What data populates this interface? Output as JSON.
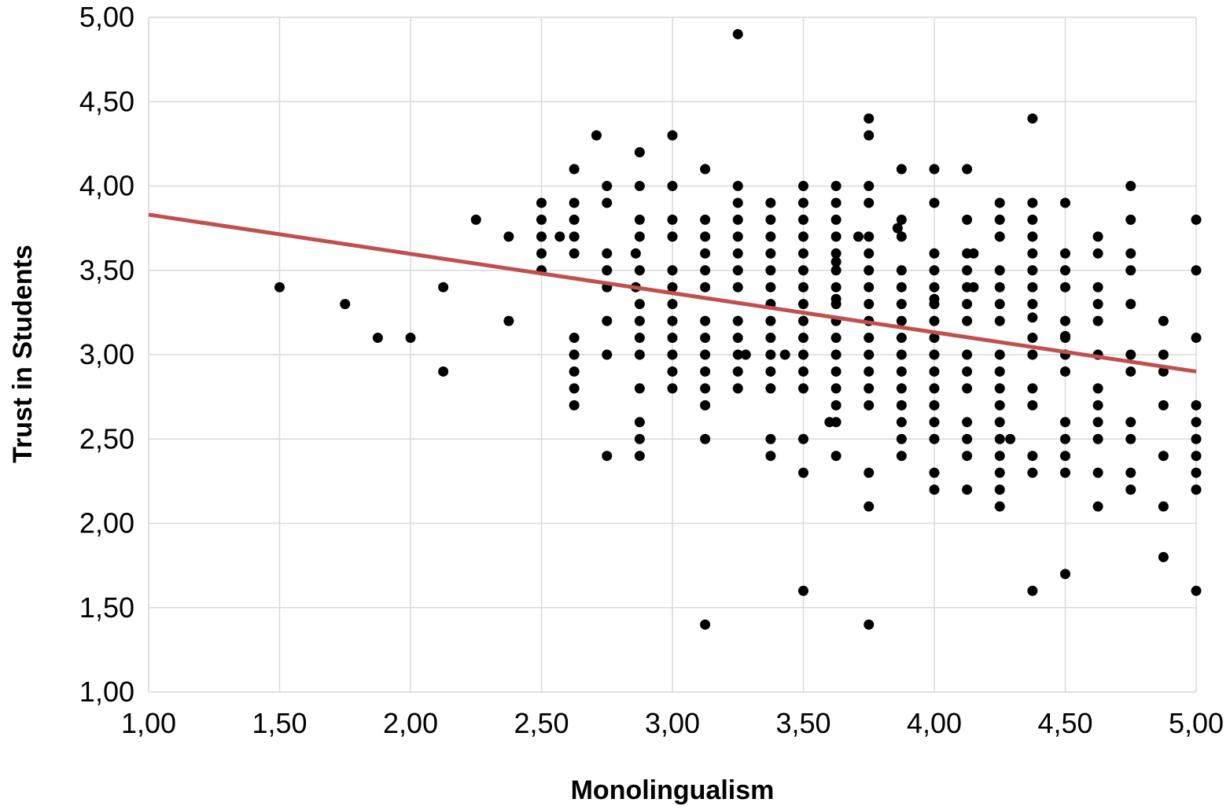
{
  "chart_data": {
    "type": "scatter",
    "title": "",
    "xlabel": "Monolingualism",
    "ylabel": "Trust in Students",
    "xlim": [
      1.0,
      5.0
    ],
    "ylim": [
      1.0,
      5.0
    ],
    "x_ticks": [
      1.0,
      1.5,
      2.0,
      2.5,
      3.0,
      3.5,
      4.0,
      4.5,
      5.0
    ],
    "x_tick_labels": [
      "1,00",
      "1,50",
      "2,00",
      "2,50",
      "3,00",
      "3,50",
      "4,00",
      "4,50",
      "5,00"
    ],
    "y_ticks": [
      1.0,
      1.5,
      2.0,
      2.5,
      3.0,
      3.5,
      4.0,
      4.5,
      5.0
    ],
    "y_tick_labels": [
      "1,00",
      "1,50",
      "2,00",
      "2,50",
      "3,00",
      "3,50",
      "4,00",
      "4,50",
      "5,00"
    ],
    "grid": true,
    "legend": "none",
    "point_color": "#000000",
    "trendline": {
      "x": [
        1.0,
        5.0
      ],
      "y": [
        3.83,
        2.9
      ],
      "color": "#c0504d"
    },
    "points": [
      [
        1.5,
        3.4
      ],
      [
        1.75,
        3.3
      ],
      [
        1.875,
        3.1
      ],
      [
        2.0,
        3.1
      ],
      [
        2.125,
        3.4
      ],
      [
        2.125,
        2.9
      ],
      [
        2.25,
        3.8
      ],
      [
        2.375,
        3.7
      ],
      [
        2.375,
        3.2
      ],
      [
        2.5,
        3.9
      ],
      [
        2.5,
        3.8
      ],
      [
        2.5,
        3.7
      ],
      [
        2.5,
        3.6
      ],
      [
        2.5,
        3.5
      ],
      [
        2.57,
        3.7
      ],
      [
        2.625,
        4.1
      ],
      [
        2.625,
        3.9
      ],
      [
        2.625,
        3.8
      ],
      [
        2.625,
        3.7
      ],
      [
        2.625,
        3.6
      ],
      [
        2.625,
        3.1
      ],
      [
        2.625,
        3.0
      ],
      [
        2.625,
        2.9
      ],
      [
        2.625,
        2.8
      ],
      [
        2.625,
        2.7
      ],
      [
        2.71,
        4.3
      ],
      [
        2.75,
        4.0
      ],
      [
        2.75,
        3.9
      ],
      [
        2.75,
        3.6
      ],
      [
        2.75,
        3.5
      ],
      [
        2.75,
        3.4
      ],
      [
        2.75,
        3.2
      ],
      [
        2.75,
        3.0
      ],
      [
        2.75,
        2.4
      ],
      [
        2.86,
        3.6
      ],
      [
        2.86,
        3.4
      ],
      [
        2.875,
        4.2
      ],
      [
        2.875,
        4.0
      ],
      [
        2.875,
        3.8
      ],
      [
        2.875,
        3.7
      ],
      [
        2.875,
        3.5
      ],
      [
        2.875,
        3.3
      ],
      [
        2.875,
        3.2
      ],
      [
        2.875,
        3.1
      ],
      [
        2.875,
        3.0
      ],
      [
        2.875,
        2.8
      ],
      [
        2.875,
        2.6
      ],
      [
        2.875,
        2.5
      ],
      [
        2.875,
        2.4
      ],
      [
        3.0,
        4.3
      ],
      [
        3.0,
        4.0
      ],
      [
        3.0,
        3.8
      ],
      [
        3.0,
        3.7
      ],
      [
        3.0,
        3.5
      ],
      [
        3.0,
        3.4
      ],
      [
        3.0,
        3.3
      ],
      [
        3.0,
        3.2
      ],
      [
        3.0,
        3.1
      ],
      [
        3.0,
        3.0
      ],
      [
        3.0,
        2.9
      ],
      [
        3.0,
        2.8
      ],
      [
        3.125,
        4.1
      ],
      [
        3.125,
        3.8
      ],
      [
        3.125,
        3.7
      ],
      [
        3.125,
        3.6
      ],
      [
        3.125,
        3.5
      ],
      [
        3.125,
        3.4
      ],
      [
        3.125,
        3.2
      ],
      [
        3.125,
        3.1
      ],
      [
        3.125,
        3.0
      ],
      [
        3.125,
        2.9
      ],
      [
        3.125,
        2.8
      ],
      [
        3.125,
        2.7
      ],
      [
        3.125,
        2.5
      ],
      [
        3.125,
        1.4
      ],
      [
        3.25,
        4.9
      ],
      [
        3.25,
        4.0
      ],
      [
        3.25,
        3.9
      ],
      [
        3.25,
        3.8
      ],
      [
        3.25,
        3.7
      ],
      [
        3.25,
        3.6
      ],
      [
        3.25,
        3.5
      ],
      [
        3.25,
        3.4
      ],
      [
        3.25,
        3.2
      ],
      [
        3.25,
        3.1
      ],
      [
        3.25,
        3.0
      ],
      [
        3.25,
        2.9
      ],
      [
        3.25,
        2.8
      ],
      [
        3.28,
        3.0
      ],
      [
        3.375,
        3.9
      ],
      [
        3.375,
        3.8
      ],
      [
        3.375,
        3.7
      ],
      [
        3.375,
        3.6
      ],
      [
        3.375,
        3.5
      ],
      [
        3.375,
        3.4
      ],
      [
        3.375,
        3.3
      ],
      [
        3.375,
        3.2
      ],
      [
        3.375,
        3.1
      ],
      [
        3.375,
        3.0
      ],
      [
        3.375,
        2.9
      ],
      [
        3.375,
        2.8
      ],
      [
        3.375,
        2.5
      ],
      [
        3.375,
        2.4
      ],
      [
        3.43,
        3.0
      ],
      [
        3.5,
        4.0
      ],
      [
        3.5,
        3.9
      ],
      [
        3.5,
        3.8
      ],
      [
        3.5,
        3.7
      ],
      [
        3.5,
        3.6
      ],
      [
        3.5,
        3.5
      ],
      [
        3.5,
        3.4
      ],
      [
        3.5,
        3.3
      ],
      [
        3.5,
        3.2
      ],
      [
        3.5,
        3.1
      ],
      [
        3.5,
        3.0
      ],
      [
        3.5,
        2.9
      ],
      [
        3.5,
        2.8
      ],
      [
        3.5,
        2.5
      ],
      [
        3.5,
        2.3
      ],
      [
        3.5,
        1.6
      ],
      [
        3.6,
        2.6
      ],
      [
        3.625,
        4.0
      ],
      [
        3.625,
        3.9
      ],
      [
        3.625,
        3.8
      ],
      [
        3.625,
        3.7
      ],
      [
        3.625,
        3.6
      ],
      [
        3.625,
        3.55
      ],
      [
        3.625,
        3.5
      ],
      [
        3.625,
        3.4
      ],
      [
        3.625,
        3.33
      ],
      [
        3.625,
        3.3
      ],
      [
        3.625,
        3.2
      ],
      [
        3.625,
        3.1
      ],
      [
        3.625,
        3.0
      ],
      [
        3.625,
        2.9
      ],
      [
        3.625,
        2.8
      ],
      [
        3.625,
        2.7
      ],
      [
        3.625,
        2.6
      ],
      [
        3.625,
        2.4
      ],
      [
        3.71,
        3.7
      ],
      [
        3.75,
        4.4
      ],
      [
        3.75,
        4.3
      ],
      [
        3.75,
        4.0
      ],
      [
        3.75,
        3.9
      ],
      [
        3.75,
        3.7
      ],
      [
        3.75,
        3.6
      ],
      [
        3.75,
        3.5
      ],
      [
        3.75,
        3.4
      ],
      [
        3.75,
        3.3
      ],
      [
        3.75,
        3.2
      ],
      [
        3.75,
        3.1
      ],
      [
        3.75,
        3.0
      ],
      [
        3.75,
        2.9
      ],
      [
        3.75,
        2.8
      ],
      [
        3.75,
        2.7
      ],
      [
        3.75,
        2.3
      ],
      [
        3.75,
        2.1
      ],
      [
        3.75,
        1.4
      ],
      [
        3.86,
        3.75
      ],
      [
        3.875,
        4.1
      ],
      [
        3.875,
        3.8
      ],
      [
        3.875,
        3.7
      ],
      [
        3.875,
        3.5
      ],
      [
        3.875,
        3.4
      ],
      [
        3.875,
        3.3
      ],
      [
        3.875,
        3.2
      ],
      [
        3.875,
        3.1
      ],
      [
        3.875,
        3.0
      ],
      [
        3.875,
        2.9
      ],
      [
        3.875,
        2.8
      ],
      [
        3.875,
        2.7
      ],
      [
        3.875,
        2.6
      ],
      [
        3.875,
        2.5
      ],
      [
        3.875,
        2.4
      ],
      [
        4.0,
        4.1
      ],
      [
        4.0,
        3.9
      ],
      [
        4.0,
        3.6
      ],
      [
        4.0,
        3.5
      ],
      [
        4.0,
        3.4
      ],
      [
        4.0,
        3.33
      ],
      [
        4.0,
        3.3
      ],
      [
        4.0,
        3.2
      ],
      [
        4.0,
        3.1
      ],
      [
        4.0,
        3.0
      ],
      [
        4.0,
        2.9
      ],
      [
        4.0,
        2.8
      ],
      [
        4.0,
        2.7
      ],
      [
        4.0,
        2.6
      ],
      [
        4.0,
        2.5
      ],
      [
        4.0,
        2.3
      ],
      [
        4.0,
        2.2
      ],
      [
        4.125,
        4.1
      ],
      [
        4.125,
        3.8
      ],
      [
        4.125,
        3.6
      ],
      [
        4.125,
        3.5
      ],
      [
        4.125,
        3.4
      ],
      [
        4.125,
        3.3
      ],
      [
        4.125,
        3.2
      ],
      [
        4.125,
        3.0
      ],
      [
        4.125,
        2.9
      ],
      [
        4.125,
        2.8
      ],
      [
        4.125,
        2.6
      ],
      [
        4.125,
        2.5
      ],
      [
        4.125,
        2.4
      ],
      [
        4.125,
        2.2
      ],
      [
        4.15,
        3.6
      ],
      [
        4.15,
        3.4
      ],
      [
        4.25,
        3.9
      ],
      [
        4.25,
        3.8
      ],
      [
        4.25,
        3.7
      ],
      [
        4.25,
        3.5
      ],
      [
        4.25,
        3.4
      ],
      [
        4.25,
        3.3
      ],
      [
        4.25,
        3.2
      ],
      [
        4.25,
        3.0
      ],
      [
        4.25,
        2.9
      ],
      [
        4.25,
        2.8
      ],
      [
        4.25,
        2.7
      ],
      [
        4.25,
        2.6
      ],
      [
        4.25,
        2.5
      ],
      [
        4.25,
        2.4
      ],
      [
        4.25,
        2.3
      ],
      [
        4.25,
        2.2
      ],
      [
        4.25,
        2.1
      ],
      [
        4.29,
        2.5
      ],
      [
        4.375,
        4.4
      ],
      [
        4.375,
        3.9
      ],
      [
        4.375,
        3.8
      ],
      [
        4.375,
        3.7
      ],
      [
        4.375,
        3.6
      ],
      [
        4.375,
        3.5
      ],
      [
        4.375,
        3.4
      ],
      [
        4.375,
        3.3
      ],
      [
        4.375,
        3.22
      ],
      [
        4.375,
        3.1
      ],
      [
        4.375,
        3.0
      ],
      [
        4.375,
        2.8
      ],
      [
        4.375,
        2.7
      ],
      [
        4.375,
        2.4
      ],
      [
        4.375,
        2.3
      ],
      [
        4.375,
        1.6
      ],
      [
        4.5,
        3.9
      ],
      [
        4.5,
        3.6
      ],
      [
        4.5,
        3.5
      ],
      [
        4.5,
        3.4
      ],
      [
        4.5,
        3.2
      ],
      [
        4.5,
        3.11
      ],
      [
        4.5,
        3.1
      ],
      [
        4.5,
        3.0
      ],
      [
        4.5,
        2.9
      ],
      [
        4.5,
        2.6
      ],
      [
        4.5,
        2.5
      ],
      [
        4.5,
        2.4
      ],
      [
        4.5,
        2.3
      ],
      [
        4.5,
        1.7
      ],
      [
        4.625,
        3.7
      ],
      [
        4.625,
        3.6
      ],
      [
        4.625,
        3.4
      ],
      [
        4.625,
        3.3
      ],
      [
        4.625,
        3.2
      ],
      [
        4.625,
        3.0
      ],
      [
        4.625,
        2.8
      ],
      [
        4.625,
        2.7
      ],
      [
        4.625,
        2.6
      ],
      [
        4.625,
        2.5
      ],
      [
        4.625,
        2.3
      ],
      [
        4.625,
        2.1
      ],
      [
        4.75,
        4.0
      ],
      [
        4.75,
        3.8
      ],
      [
        4.75,
        3.6
      ],
      [
        4.75,
        3.5
      ],
      [
        4.75,
        3.3
      ],
      [
        4.75,
        3.0
      ],
      [
        4.75,
        2.9
      ],
      [
        4.75,
        2.6
      ],
      [
        4.75,
        2.5
      ],
      [
        4.75,
        2.3
      ],
      [
        4.75,
        2.2
      ],
      [
        4.875,
        3.2
      ],
      [
        4.875,
        3.0
      ],
      [
        4.875,
        2.9
      ],
      [
        4.875,
        2.7
      ],
      [
        4.875,
        2.4
      ],
      [
        4.875,
        2.1
      ],
      [
        4.875,
        1.8
      ],
      [
        5.0,
        3.8
      ],
      [
        5.0,
        3.5
      ],
      [
        5.0,
        3.1
      ],
      [
        5.0,
        2.7
      ],
      [
        5.0,
        2.6
      ],
      [
        5.0,
        2.5
      ],
      [
        5.0,
        2.4
      ],
      [
        5.0,
        2.3
      ],
      [
        5.0,
        2.2
      ],
      [
        5.0,
        1.6
      ]
    ]
  }
}
